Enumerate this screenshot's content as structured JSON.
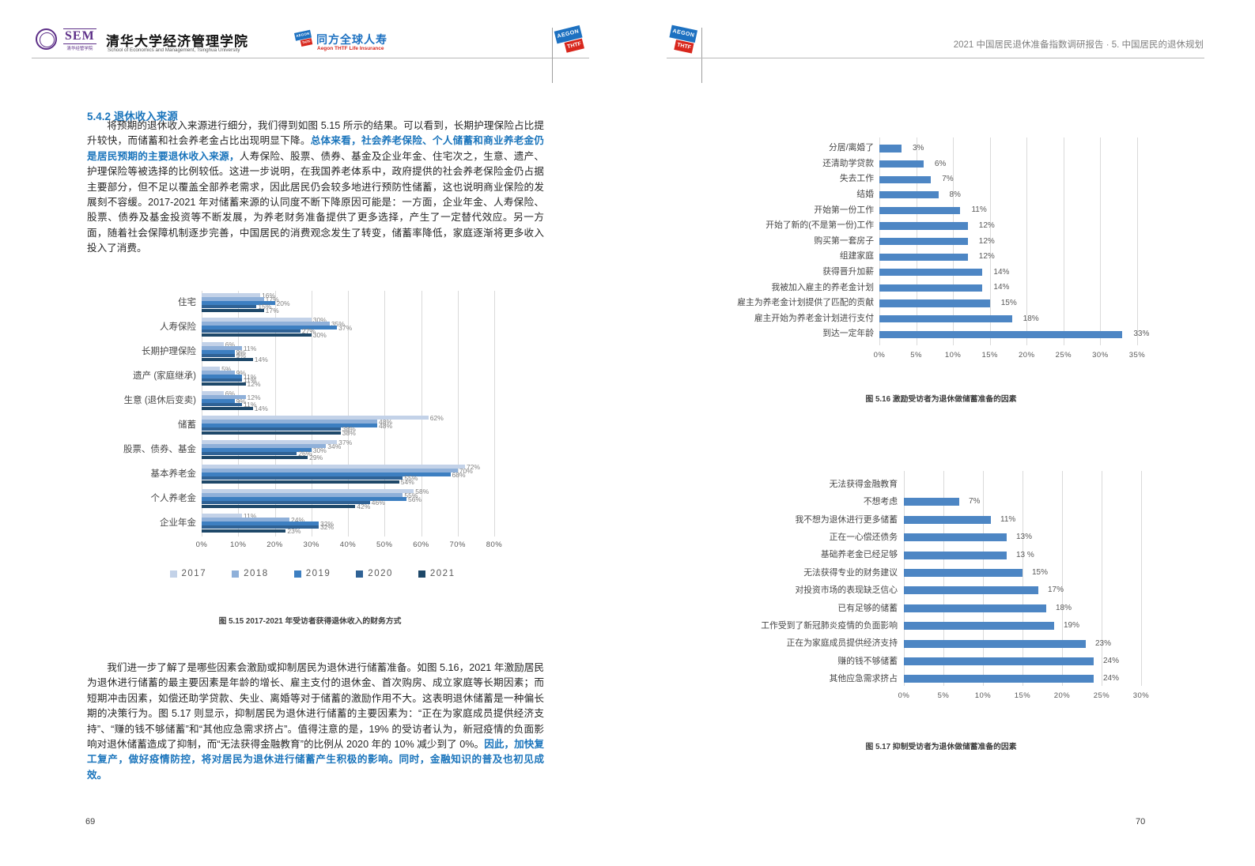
{
  "left_page": {
    "page_number": "69",
    "logos": {
      "sem_acronym": "SEM",
      "sem_cn_small": "清华经管学院",
      "tsinghua_cn": "清华大学经济管理学院",
      "tsinghua_en": "School of Economics and Management, Tsinghua University",
      "partner_cn": "同方全球人寿",
      "partner_en": "Aegon THTF Life Insurance",
      "aegon_top": "AEGON",
      "aegon_bottom": "THTF"
    },
    "section_title": "5.4.2 退休收入来源",
    "para1": {
      "lead": "将预期的退休收入来源进行细分，我们得到如图 5.15 所示的结果。可以看到，长期护理保险占比提升较快，而储蓄和社会养老金占比出现明显下降。",
      "bold": "总体来看，社会养老保险、个人储蓄和商业养老金仍是居民预期的主要退休收入来源，",
      "rest": "人寿保险、股票、债券、基金及企业年金、住宅次之，生意、遗产、护理保险等被选择的比例较低。这进一步说明，在我国养老体系中，政府提供的社会养老保险金仍占据主要部分，但不足以覆盖全部养老需求，因此居民仍会较多地进行预防性储蓄，这也说明商业保险的发展刻不容缓。2017-2021 年对储蓄来源的认同度不断下降原因可能是：一方面，企业年金、人寿保险、股票、债券及基金投资等不断发展，为养老财务准备提供了更多选择，产生了一定替代效应。另一方面，随着社会保障机制逐步完善，中国居民的消费观念发生了转变，储蓄率降低，家庭逐渐将更多收入投入了消费。"
    },
    "para2": {
      "lead": "我们进一步了解了是哪些因素会激励或抑制居民为退休进行储蓄准备。如图 5.16，2021 年激励居民为退休进行储蓄的最主要因素是年龄的增长、雇主支付的退休金、首次购房、成立家庭等长期因素；而短期冲击因素，如偿还助学贷款、失业、离婚等对于储蓄的激励作用不大。这表明退休储蓄是一种偏长期的决策行为。图 5.17 则显示，抑制居民为退休进行储蓄的主要因素为：“正在为家庭成员提供经济支持”、“赚的钱不够储蓄”和“其他应急需求挤占”。值得注意的是，19% 的受访者认为，新冠疫情的负面影响对退休储蓄造成了抑制，而“无法获得金融教育”的比例从 2020 年的 10% 减少到了 0%。",
      "bold": "因此，加快复工复产，做好疫情防控，将对居民为退休进行储蓄产生积极的影响。同时，金融知识的普及也初见成效。"
    }
  },
  "right_page": {
    "page_number": "70",
    "header_title": "2021 中国居民退休准备指数调研报告 · 5. 中国居民的退休规划",
    "logos": {
      "aegon_top": "AEGON",
      "aegon_bottom": "THTF"
    }
  },
  "chart_data": [
    {
      "id": "fig515",
      "type": "bar",
      "orientation": "horizontal",
      "title": "图 5.15 2017-2021 年受访者获得退休收入的财务方式",
      "categories": [
        "住宅",
        "人寿保险",
        "长期护理保险",
        "遗产 (家庭继承)",
        "生意 (退休后变卖)",
        "储蓄",
        "股票、债券、基金",
        "基本养老金",
        "个人养老金",
        "企业年金"
      ],
      "series": [
        {
          "name": "2017",
          "color": "#c3d2e8",
          "values": [
            16,
            30,
            6,
            5,
            6,
            62,
            37,
            72,
            58,
            11
          ]
        },
        {
          "name": "2018",
          "color": "#8fb0d9",
          "values": [
            17,
            35,
            11,
            9,
            12,
            48,
            34,
            70,
            55,
            24
          ]
        },
        {
          "name": "2019",
          "color": "#3d7fc1",
          "values": [
            20,
            37,
            9,
            11,
            9,
            48,
            30,
            68,
            56,
            32
          ]
        },
        {
          "name": "2020",
          "color": "#2f6295",
          "values": [
            15,
            27,
            9,
            11,
            11,
            38,
            26,
            55,
            46,
            32
          ]
        },
        {
          "name": "2021",
          "color": "#1e4869",
          "values": [
            17,
            30,
            14,
            12,
            14,
            38,
            29,
            54,
            42,
            23
          ]
        }
      ],
      "xlim": [
        0,
        80
      ],
      "ticks": [
        "0%",
        "10%",
        "20%",
        "30%",
        "40%",
        "50%",
        "60%",
        "70%",
        "80%"
      ],
      "grid": true,
      "legend_position": "bottom"
    },
    {
      "id": "fig516",
      "type": "bar",
      "orientation": "horizontal",
      "title": "图 5.16 激励受访者为退休做储蓄准备的因素",
      "categories": [
        "分居/离婚了",
        "还清助学贷款",
        "失去工作",
        "结婚",
        "开始第一份工作",
        "开始了新的(不是第一份)工作",
        "购买第一套房子",
        "组建家庭",
        "获得晋升加薪",
        "我被加入雇主的养老金计划",
        "雇主为养老金计划提供了匹配的贡献",
        "雇主开始为养老金计划进行支付",
        "到达一定年龄"
      ],
      "values": [
        3,
        6,
        7,
        8,
        11,
        12,
        12,
        12,
        14,
        14,
        15,
        18,
        33
      ],
      "labels": [
        "3%",
        "6%",
        "7%",
        "8%",
        "11%",
        "12%",
        "12%",
        "12%",
        "14%",
        "14%",
        "15%",
        "18%",
        "33%"
      ],
      "bar_color": "#4d86c4",
      "xlim": [
        0,
        35
      ],
      "ticks": [
        "0%",
        "5%",
        "10%",
        "15%",
        "20%",
        "25%",
        "30%",
        "35%"
      ],
      "grid": true
    },
    {
      "id": "fig517",
      "type": "bar",
      "orientation": "horizontal",
      "title": "图 5.17 抑制受访者为退休做储蓄准备的因素",
      "categories": [
        "无法获得金融教育",
        "不想考虑",
        "我不想为退休进行更多储蓄",
        "正在一心偿还债务",
        "基础养老金已经足够",
        "无法获得专业的财务建议",
        "对投资市场的表现缺乏信心",
        "已有足够的储蓄",
        "工作受到了新冠肺炎疫情的负面影响",
        "正在为家庭成员提供经济支持",
        "赚的钱不够储蓄",
        "其他应急需求挤占"
      ],
      "values": [
        0,
        7,
        11,
        13,
        13,
        15,
        17,
        18,
        19,
        23,
        24,
        24
      ],
      "labels": [
        "",
        "7%",
        "11%",
        "13%",
        "13 %",
        "15%",
        "17%",
        "18%",
        "19%",
        "23%",
        "24%",
        "24%"
      ],
      "bar_color": "#4d86c4",
      "xlim": [
        0,
        30
      ],
      "ticks": [
        "0%",
        "5%",
        "10%",
        "15%",
        "20%",
        "25%",
        "30%"
      ],
      "grid": true
    }
  ]
}
